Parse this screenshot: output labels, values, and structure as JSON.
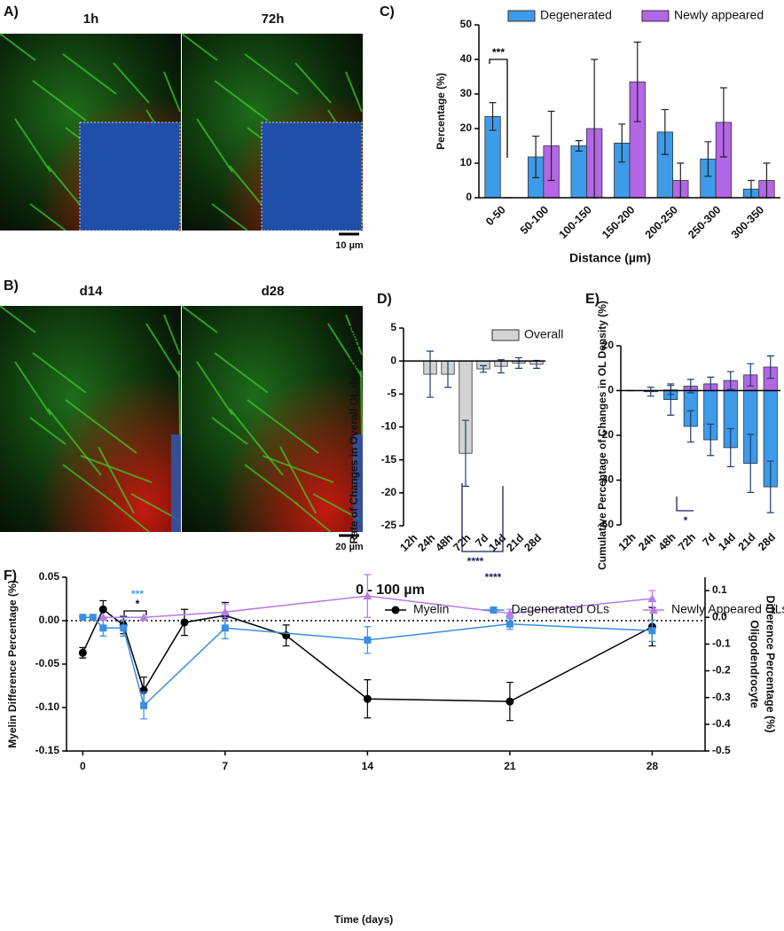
{
  "images": [
    {
      "label": "A)",
      "captions": [
        "1h",
        "72h"
      ],
      "scale_bar": "10 µm"
    },
    {
      "label": "B)",
      "captions": [
        "d14",
        "d28"
      ],
      "scale_bar": "20 µm"
    }
  ],
  "chart_data": [
    {
      "label": "C)",
      "type": "bar",
      "bar_mode": "grouped",
      "categories": [
        "0-50",
        "50-100",
        "100-150",
        "150-200",
        "200-250",
        "250-300",
        "300-350"
      ],
      "series": [
        {
          "name": "Degenerated",
          "color": "#3d9be9",
          "values": [
            23.5,
            11.8,
            15,
            15.8,
            19,
            11.2,
            2.5
          ],
          "errors": [
            4,
            6,
            1.5,
            5.5,
            6.5,
            5,
            2.5
          ]
        },
        {
          "name": "Newly appeared",
          "color": "#b366e6",
          "values": [
            0,
            15,
            20,
            33.5,
            5,
            21.8,
            5
          ],
          "errors": [
            0,
            10,
            20,
            11.5,
            5,
            10,
            5
          ]
        }
      ],
      "xlabel": "Distance (µm)",
      "ylabel": "Percentage (%)",
      "ylim": [
        0,
        50
      ],
      "yticks": [
        0,
        10,
        20,
        30,
        40,
        50
      ],
      "legend": "top",
      "annotations": [
        {
          "text": "***",
          "color": "#000000"
        }
      ]
    },
    {
      "label": "D)",
      "type": "bar",
      "bar_mode": "grouped",
      "categories": [
        "12h",
        "24h",
        "48h",
        "72h",
        "7d",
        "14d",
        "21d",
        "28d"
      ],
      "series": [
        {
          "name": "Overall",
          "color": "#d3d3d3",
          "values": [
            0,
            -2,
            -2,
            -14,
            -1.2,
            -0.8,
            -0.3,
            -0.5
          ],
          "errors": [
            0,
            3.5,
            2,
            5,
            0.5,
            1,
            0.8,
            0.6
          ]
        }
      ],
      "ylabel": "Rate of Changes in Overall OL density (%/day)",
      "ylim": [
        -25,
        5
      ],
      "yticks": [
        -25,
        -20,
        -15,
        -10,
        -5,
        0,
        5
      ],
      "legend": "top-right",
      "annotations": [
        {
          "text": "****",
          "color": "#1f1f5c"
        },
        {
          "text": "****",
          "color": "#1f1f5c"
        }
      ]
    },
    {
      "label": "E)",
      "type": "bar",
      "bar_mode": "overlaid",
      "categories": [
        "12h",
        "24h",
        "48h",
        "72h",
        "7d",
        "14d",
        "21d",
        "28d"
      ],
      "series": [
        {
          "color": "#3d9be9",
          "values": [
            0,
            -0.5,
            -4,
            -16,
            -22,
            -25.5,
            -32.5,
            -43
          ],
          "errors": [
            0,
            2,
            7,
            7,
            7,
            8.5,
            13,
            11.5
          ]
        },
        {
          "color": "#b366e6",
          "values": [
            0,
            0,
            0.3,
            2,
            3,
            4.5,
            7,
            10.5
          ],
          "errors": [
            0,
            0,
            2,
            3,
            3,
            4,
            5,
            5
          ]
        }
      ],
      "ylabel": "Cumulative Percentage of Changes in OL Density (%)",
      "ylim": [
        -60,
        20
      ],
      "yticks": [
        -60,
        -40,
        -20,
        0,
        20
      ],
      "annotations": [
        {
          "text": "*",
          "color": "#1f1f5c"
        }
      ]
    },
    {
      "label": "F)",
      "type": "line",
      "title": "0 - 100 µm",
      "xlabel": "Time (days)",
      "ylabel": "Myelin Difference Percentage (%)",
      "y2label": [
        "Oligodendrocyte",
        "Difference Percentage (%)"
      ],
      "xlim": [
        -0.8,
        30.6
      ],
      "xticks": [
        0,
        7,
        14,
        21,
        28
      ],
      "ylim": [
        -0.15,
        0.05
      ],
      "yticks": [
        {
          "value": 0.05,
          "label": "0.05"
        },
        {
          "value": 0,
          "label": "0.00"
        },
        {
          "value": -0.05,
          "label": "-0.05"
        },
        {
          "value": -0.1,
          "label": "-0.10"
        },
        {
          "value": -0.15,
          "label": "-0.15"
        }
      ],
      "y2lim": [
        -0.5,
        0.15
      ],
      "y2ticks": [
        0.1,
        {
          "value": 0,
          "label": "0.0"
        },
        -0.1,
        -0.2,
        -0.3,
        -0.4,
        -0.5
      ],
      "zero_line": true,
      "legend": "top-right",
      "series": [
        {
          "name": "Myelin",
          "color": "#000000",
          "marker": "circle",
          "x": [
            0,
            1,
            2,
            3,
            5,
            7,
            10,
            14,
            21,
            28
          ],
          "values": [
            -0.037,
            0.013,
            -0.005,
            -0.08,
            -0.002,
            0.006,
            -0.017,
            -0.09,
            -0.093,
            -0.007
          ],
          "errors": [
            0.006,
            0.01,
            0.01,
            0.015,
            0.015,
            0.015,
            0.012,
            0.022,
            0.022,
            0.022
          ]
        },
        {
          "name": "Degenerated OLs",
          "color": "#3b8ee0",
          "marker": "square",
          "axis": "y2",
          "x": [
            0,
            0.5,
            1,
            2,
            3,
            7,
            14,
            21,
            28
          ],
          "values": [
            0,
            0,
            -0.04,
            -0.04,
            -0.33,
            -0.04,
            -0.085,
            -0.025,
            -0.05
          ],
          "errors": [
            0,
            0,
            0.03,
            0.03,
            0.05,
            0.04,
            0.05,
            0.02,
            0.04
          ]
        },
        {
          "name": "Newly Appeared OLs",
          "color": "#b77be8",
          "marker": "triangle",
          "axis": "y2",
          "x": [
            1,
            3,
            7,
            14,
            21,
            28
          ],
          "values": [
            0,
            0,
            0.02,
            0.08,
            0.015,
            0.07
          ],
          "errors": [
            0,
            0,
            0.03,
            0.08,
            0.015,
            0.03
          ]
        }
      ],
      "annotations": [
        {
          "text": "***",
          "color": "#4aa3e8"
        },
        {
          "text": "*",
          "color": "#000000"
        }
      ]
    }
  ]
}
